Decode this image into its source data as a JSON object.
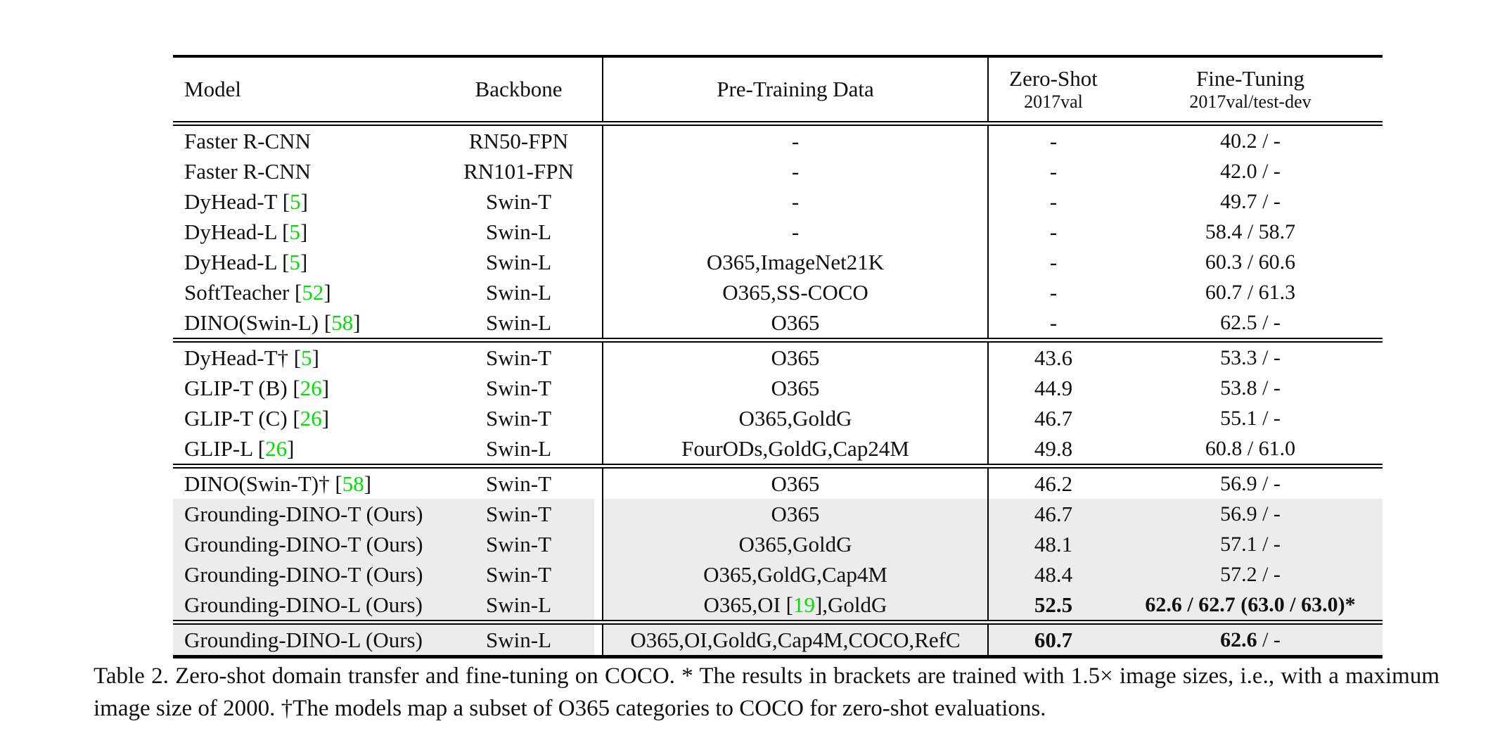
{
  "colors": {
    "citation_green": "#00e000",
    "highlight_gray": "#ececec"
  },
  "table": {
    "header": {
      "model": "Model",
      "backbone": "Backbone",
      "pretrain": "Pre-Training Data",
      "zeroshot_title": "Zero-Shot",
      "zeroshot_sub": "2017val",
      "finetune_title": "Fine-Tuning",
      "finetune_sub": "2017val/test-dev"
    },
    "groups": [
      {
        "rows": [
          {
            "model": "Faster R-CNN",
            "backbone": "RN50-FPN",
            "pretrain": "-",
            "zeroshot": "-",
            "zeroshot_bold": false,
            "finetune": [
              {
                "text": "40.2 / -",
                "bold": false
              }
            ],
            "highlight": false
          },
          {
            "model": "Faster R-CNN",
            "backbone": "RN101-FPN",
            "pretrain": "-",
            "zeroshot": "-",
            "zeroshot_bold": false,
            "finetune": [
              {
                "text": "42.0 / -",
                "bold": false
              }
            ],
            "highlight": false
          },
          {
            "model": "DyHead-T [5]",
            "backbone": "Swin-T",
            "pretrain": "-",
            "zeroshot": "-",
            "zeroshot_bold": false,
            "finetune": [
              {
                "text": "49.7 / -",
                "bold": false
              }
            ],
            "highlight": false
          },
          {
            "model": "DyHead-L [5]",
            "backbone": "Swin-L",
            "pretrain": "-",
            "zeroshot": "-",
            "zeroshot_bold": false,
            "finetune": [
              {
                "text": "58.4 / 58.7",
                "bold": false
              }
            ],
            "highlight": false
          },
          {
            "model": "DyHead-L [5]",
            "backbone": "Swin-L",
            "pretrain": "O365,ImageNet21K",
            "zeroshot": "-",
            "zeroshot_bold": false,
            "finetune": [
              {
                "text": "60.3 / 60.6",
                "bold": false
              }
            ],
            "highlight": false
          },
          {
            "model": "SoftTeacher [52]",
            "backbone": "Swin-L",
            "pretrain": "O365,SS-COCO",
            "zeroshot": "-",
            "zeroshot_bold": false,
            "finetune": [
              {
                "text": "60.7 / 61.3",
                "bold": false
              }
            ],
            "highlight": false
          },
          {
            "model": "DINO(Swin-L) [58]",
            "backbone": "Swin-L",
            "pretrain": "O365",
            "zeroshot": "-",
            "zeroshot_bold": false,
            "finetune": [
              {
                "text": "62.5 / -",
                "bold": false
              }
            ],
            "highlight": false
          }
        ]
      },
      {
        "rows": [
          {
            "model": "DyHead-T† [5]",
            "backbone": "Swin-T",
            "pretrain": "O365",
            "zeroshot": "43.6",
            "zeroshot_bold": false,
            "finetune": [
              {
                "text": "53.3 / -",
                "bold": false
              }
            ],
            "highlight": false
          },
          {
            "model": "GLIP-T (B) [26]",
            "backbone": "Swin-T",
            "pretrain": "O365",
            "zeroshot": "44.9",
            "zeroshot_bold": false,
            "finetune": [
              {
                "text": "53.8 / -",
                "bold": false
              }
            ],
            "highlight": false
          },
          {
            "model": "GLIP-T (C) [26]",
            "backbone": "Swin-T",
            "pretrain": "O365,GoldG",
            "zeroshot": "46.7",
            "zeroshot_bold": false,
            "finetune": [
              {
                "text": "55.1 / -",
                "bold": false
              }
            ],
            "highlight": false
          },
          {
            "model": "GLIP-L [26]",
            "backbone": "Swin-L",
            "pretrain": "FourODs,GoldG,Cap24M",
            "zeroshot": "49.8",
            "zeroshot_bold": false,
            "finetune": [
              {
                "text": "60.8 / 61.0",
                "bold": false
              }
            ],
            "highlight": false
          }
        ]
      },
      {
        "rows": [
          {
            "model": "DINO(Swin-T)† [58]",
            "backbone": "Swin-T",
            "pretrain": "O365",
            "zeroshot": "46.2",
            "zeroshot_bold": false,
            "finetune": [
              {
                "text": "56.9 / -",
                "bold": false
              }
            ],
            "highlight": false
          },
          {
            "model": "Grounding-DINO-T (Ours)",
            "backbone": "Swin-T",
            "pretrain": "O365",
            "zeroshot": "46.7",
            "zeroshot_bold": false,
            "finetune": [
              {
                "text": "56.9 / -",
                "bold": false
              }
            ],
            "highlight": true
          },
          {
            "model": "Grounding-DINO-T (Ours)",
            "backbone": "Swin-T",
            "pretrain": "O365,GoldG",
            "zeroshot": "48.1",
            "zeroshot_bold": false,
            "finetune": [
              {
                "text": "57.1 / -",
                "bold": false
              }
            ],
            "highlight": true
          },
          {
            "model": "Grounding-DINO-T (Ours)",
            "backbone": "Swin-T",
            "pretrain": "O365,GoldG,Cap4M",
            "zeroshot": "48.4",
            "zeroshot_bold": false,
            "finetune": [
              {
                "text": "57.2 / -",
                "bold": false
              }
            ],
            "highlight": true
          },
          {
            "model": "Grounding-DINO-L (Ours)",
            "backbone": "Swin-L",
            "pretrain": "O365,OI [19],GoldG",
            "zeroshot": "52.5",
            "zeroshot_bold": true,
            "finetune": [
              {
                "text": "62.6 / 62.7 (63.0 / 63.0)*",
                "bold": true
              }
            ],
            "highlight": true
          }
        ]
      },
      {
        "rows": [
          {
            "model": "Grounding-DINO-L (Ours)",
            "backbone": "Swin-L",
            "pretrain": "O365,OI,GoldG,Cap4M,COCO,RefC",
            "zeroshot": "60.7",
            "zeroshot_bold": true,
            "finetune": [
              {
                "text": "62.6",
                "bold": true
              },
              {
                "text": " / -",
                "bold": false
              }
            ],
            "highlight": true
          }
        ]
      }
    ]
  },
  "caption": "Table 2.  Zero-shot domain transfer and fine-tuning on COCO. * The results in brackets are trained with 1.5× image sizes, i.e., with a maximum image size of 2000. †The models map a subset of O365 categories to COCO for zero-shot evaluations."
}
